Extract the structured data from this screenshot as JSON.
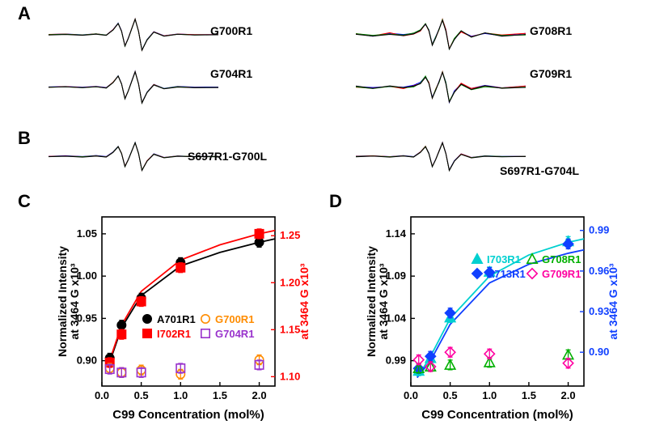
{
  "panels": {
    "A": {
      "label": "A"
    },
    "B": {
      "label": "B"
    },
    "C": {
      "label": "C"
    },
    "D": {
      "label": "D"
    }
  },
  "spectra": {
    "A_left": [
      {
        "label": "G700R1"
      },
      {
        "label": "G704R1"
      }
    ],
    "A_right": [
      {
        "label": "G708R1"
      },
      {
        "label": "G709R1"
      }
    ],
    "B_left": {
      "label": "S697R1-G700L"
    },
    "B_right": {
      "label": "S697R1-G704L"
    },
    "colors": [
      "#0000ff",
      "#ff0000",
      "#008000",
      "#000000"
    ]
  },
  "chart_C": {
    "xlabel": "C99 Concentration (mol%)",
    "ylabel_left": "Normalized Intensity\nat 3464 G x10³",
    "ylabel_right": "at 3464 G x10³",
    "xlim": [
      0,
      2.2
    ],
    "xticks": [
      0.0,
      0.5,
      1.0,
      1.5,
      2.0
    ],
    "ylim_left": [
      0.87,
      1.07
    ],
    "yticks_left": [
      0.9,
      0.95,
      1.0,
      1.05
    ],
    "ylim_right": [
      1.09,
      1.27
    ],
    "yticks_right": [
      1.1,
      1.15,
      1.2,
      1.25
    ],
    "series": [
      {
        "name": "A701R1",
        "color": "#000000",
        "marker": "circle",
        "filled": true,
        "x": [
          0.1,
          0.25,
          0.5,
          1.0,
          2.0
        ],
        "y": [
          0.903,
          0.942,
          0.974,
          1.016,
          1.04
        ]
      },
      {
        "name": "I702R1",
        "color": "#ff0000",
        "marker": "square",
        "filled": true,
        "axis": "right",
        "x": [
          0.1,
          0.25,
          0.5,
          1.0,
          2.0
        ],
        "y": [
          1.115,
          1.145,
          1.18,
          1.216,
          1.252
        ]
      },
      {
        "name": "G700R1",
        "color": "#ff8c00",
        "marker": "circle",
        "filled": false,
        "x": [
          0.1,
          0.25,
          0.5,
          1.0,
          2.0
        ],
        "y": [
          0.891,
          0.886,
          0.889,
          0.884,
          0.901
        ]
      },
      {
        "name": "G704R1",
        "color": "#9932cc",
        "marker": "square",
        "filled": false,
        "x": [
          0.1,
          0.25,
          0.5,
          1.0,
          2.0
        ],
        "y": [
          0.89,
          0.886,
          0.886,
          0.891,
          0.895
        ]
      }
    ],
    "curves": [
      {
        "color": "#000000",
        "x": [
          0.08,
          0.25,
          0.5,
          1.0,
          1.5,
          2.0,
          2.2
        ],
        "y": [
          0.893,
          0.939,
          0.977,
          1.012,
          1.028,
          1.04,
          1.044
        ]
      },
      {
        "color": "#ff0000",
        "x": [
          0.08,
          0.25,
          0.5,
          1.0,
          1.5,
          2.0,
          2.2
        ],
        "y": [
          0.895,
          0.942,
          0.982,
          1.019,
          1.037,
          1.05,
          1.054
        ]
      }
    ]
  },
  "chart_D": {
    "xlabel": "C99 Concentration (mol%)",
    "ylabel_left": "Normalized Intensity\nat 3464 G x10³",
    "ylabel_right": "at 3464 G x10³",
    "xlim": [
      0,
      2.2
    ],
    "xticks": [
      0.0,
      0.5,
      1.0,
      1.5,
      2.0
    ],
    "ylim_left": [
      0.96,
      1.16
    ],
    "yticks_left": [
      0.99,
      1.04,
      1.09,
      1.14
    ],
    "ylim_right": [
      0.875,
      1.0
    ],
    "yticks_right": [
      0.9,
      0.93,
      0.96,
      0.99
    ],
    "series": [
      {
        "name": "I703R1",
        "color": "#00d0d0",
        "marker": "triangle",
        "filled": true,
        "x": [
          0.1,
          0.25,
          0.5,
          1.0,
          2.0
        ],
        "y": [
          0.978,
          0.993,
          1.041,
          1.095,
          1.131
        ]
      },
      {
        "name": "A713R1",
        "color": "#1040ff",
        "marker": "diamond",
        "filled": true,
        "axis": "right",
        "x": [
          0.1,
          0.25,
          0.5,
          1.0,
          2.0
        ],
        "y": [
          0.888,
          0.897,
          0.929,
          0.959,
          0.98
        ]
      },
      {
        "name": "G708R1",
        "color": "#00b000",
        "marker": "triangle",
        "filled": false,
        "x": [
          0.1,
          0.25,
          0.5,
          1.0,
          2.0
        ],
        "y": [
          0.981,
          0.983,
          0.985,
          0.988,
          0.997
        ]
      },
      {
        "name": "G709R1",
        "color": "#ff00a0",
        "marker": "diamond",
        "filled": false,
        "x": [
          0.1,
          0.25,
          0.5,
          1.0,
          2.0
        ],
        "y": [
          0.991,
          0.983,
          1.0,
          0.998,
          0.987
        ]
      }
    ],
    "curves": [
      {
        "color": "#00d0d0",
        "x": [
          0.08,
          0.25,
          0.5,
          1.0,
          1.5,
          2.0,
          2.2
        ],
        "y": [
          0.97,
          0.995,
          1.04,
          1.09,
          1.115,
          1.13,
          1.134
        ]
      },
      {
        "color": "#1040ff",
        "x": [
          0.08,
          0.25,
          0.5,
          1.0,
          1.5,
          2.0,
          2.2
        ],
        "y": [
          0.97,
          0.99,
          1.033,
          1.082,
          1.104,
          1.117,
          1.121
        ]
      }
    ]
  },
  "epr_shape": {
    "x": [
      0,
      10,
      20,
      28,
      34,
      38,
      41,
      43,
      45,
      47,
      49,
      51,
      53,
      55,
      58,
      62,
      68,
      76,
      86,
      100
    ],
    "y": [
      0,
      0.3,
      -0.2,
      0.4,
      -0.3,
      2.8,
      6.5,
      2.0,
      -6.5,
      -2.0,
      3.5,
      9.0,
      2.0,
      -9.0,
      -3.0,
      1.5,
      -0.8,
      0.3,
      -0.1,
      0
    ],
    "noisy_y": [
      0.4,
      -0.6,
      0.7,
      -0.4,
      0.6,
      2.4,
      6.1,
      2.5,
      -6.0,
      -1.5,
      3.0,
      8.5,
      2.5,
      -8.5,
      -2.5,
      1.9,
      -1.2,
      0.7,
      -0.5,
      0.3
    ]
  }
}
